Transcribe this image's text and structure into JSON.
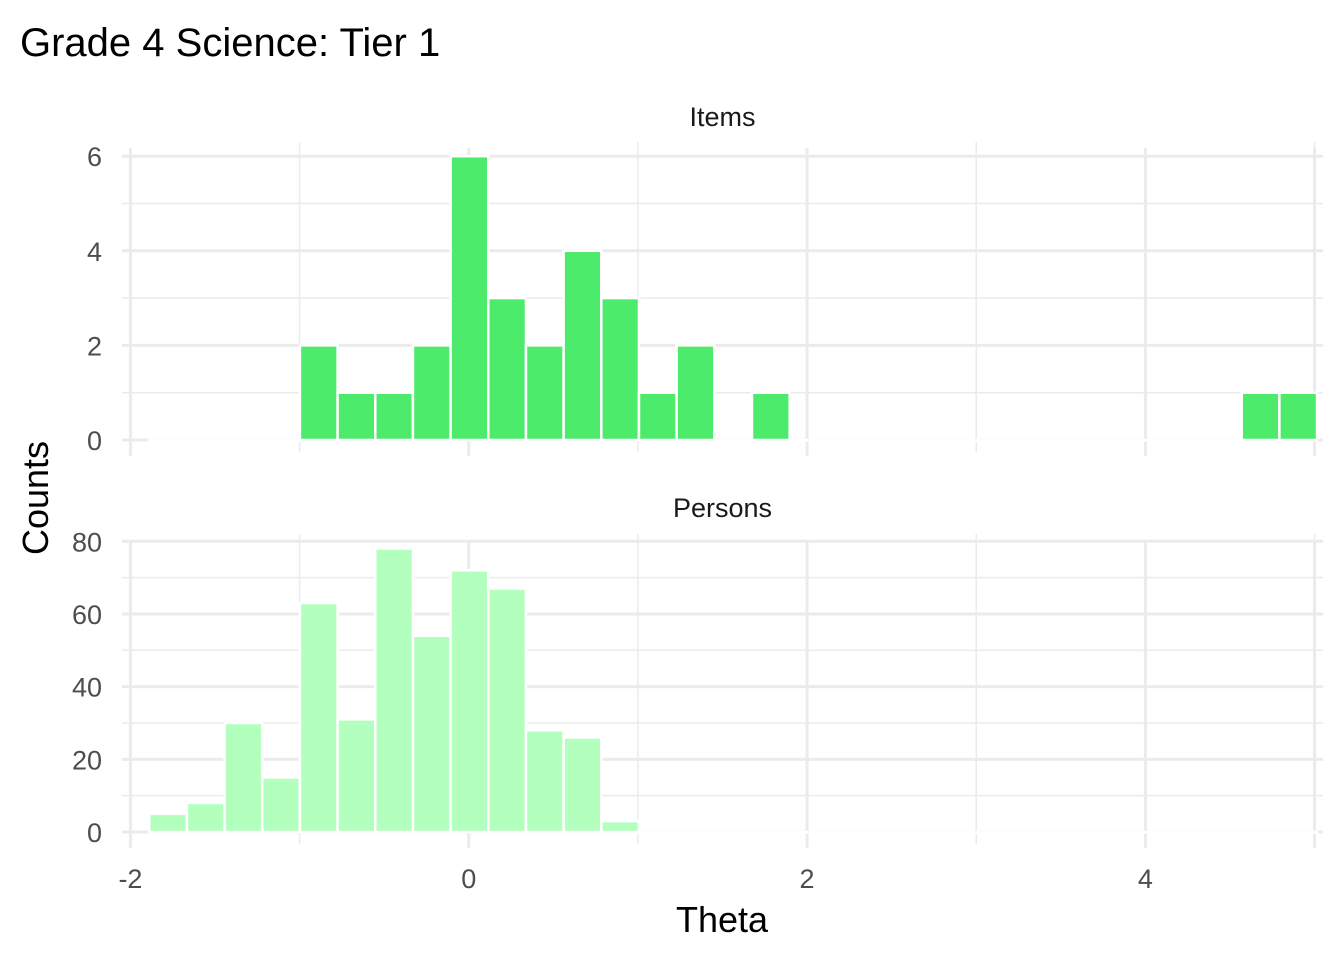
{
  "chart_data": {
    "type": "bar",
    "title": "Grade 4 Science: Tier 1",
    "xlabel": "Theta",
    "ylabel": "Counts",
    "xlim": [
      -2.05,
      5.05
    ],
    "x_ticks": [
      -2,
      0,
      2,
      4
    ],
    "x_tick_labels": [
      "-2",
      "0",
      "2",
      "4"
    ],
    "grid": true,
    "bin_width": 0.2227,
    "bin_start": -1.8889,
    "panels": [
      {
        "name": "Items",
        "ylim": [
          0,
          6.3
        ],
        "y_ticks": [
          0,
          2,
          4,
          6
        ],
        "y_tick_labels": [
          "0",
          "2",
          "4",
          "6"
        ],
        "color": "#4deb6b",
        "counts": [
          0,
          0,
          0,
          0,
          2,
          1,
          1,
          2,
          6,
          3,
          2,
          4,
          3,
          1,
          2,
          0,
          1,
          0,
          0,
          0,
          0,
          0,
          0,
          0,
          0,
          0,
          0,
          0,
          0,
          1,
          1
        ]
      },
      {
        "name": "Persons",
        "ylim": [
          0,
          82
        ],
        "y_ticks": [
          0,
          20,
          40,
          60,
          80
        ],
        "y_tick_labels": [
          "0",
          "20",
          "40",
          "60",
          "80"
        ],
        "color": "#b3ffbe",
        "counts": [
          5,
          8,
          30,
          15,
          63,
          31,
          78,
          54,
          72,
          67,
          28,
          26,
          3,
          0,
          0,
          0,
          0,
          0,
          0,
          0,
          0,
          0,
          0,
          0,
          0,
          0,
          0,
          0,
          0,
          0,
          0
        ]
      }
    ]
  }
}
